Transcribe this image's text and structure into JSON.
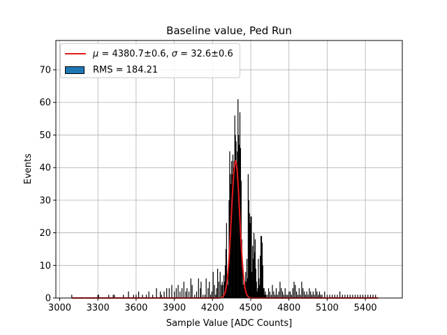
{
  "chart_data": {
    "type": "bar",
    "title": "Baseline value, Ped Run",
    "xlabel": "Sample Value [ADC Counts]",
    "ylabel": "Events",
    "xlim": [
      2970,
      5690
    ],
    "ylim": [
      0,
      79
    ],
    "xticks": [
      3000,
      3300,
      3600,
      3900,
      4200,
      4500,
      4800,
      5100,
      5400
    ],
    "yticks": [
      0,
      10,
      20,
      30,
      40,
      50,
      60,
      70
    ],
    "grid": true,
    "legend_position": "top-left",
    "fit": {
      "name_mu": "μ",
      "mu_value": "4380.7±0.6",
      "name_sigma": "σ",
      "sigma_value": "32.6±0.6",
      "mu": 4380.7,
      "sigma": 32.6,
      "amplitude": 42,
      "x_range": [
        3095,
        5500
      ],
      "color": "#e31a1c"
    },
    "histogram": {
      "label": "RMS = 184.21",
      "legend_color": "#1f77b4",
      "edge_color": "#000000",
      "x": [
        3095,
        3300,
        3305,
        3385,
        3420,
        3430,
        3500,
        3540,
        3580,
        3600,
        3620,
        3650,
        3680,
        3700,
        3730,
        3760,
        3790,
        3800,
        3820,
        3840,
        3860,
        3880,
        3900,
        3915,
        3930,
        3945,
        3960,
        3975,
        3990,
        4000,
        4015,
        4030,
        4040,
        4060,
        4075,
        4090,
        4105,
        4110,
        4125,
        4140,
        4150,
        4165,
        4175,
        4185,
        4195,
        4205,
        4215,
        4225,
        4232,
        4240,
        4250,
        4260,
        4270,
        4276,
        4280,
        4290,
        4295,
        4300,
        4305,
        4310,
        4315,
        4320,
        4325,
        4330,
        4335,
        4340,
        4345,
        4350,
        4355,
        4360,
        4365,
        4370,
        4375,
        4380,
        4385,
        4390,
        4395,
        4400,
        4405,
        4410,
        4415,
        4420,
        4425,
        4430,
        4435,
        4440,
        4445,
        4450,
        4455,
        4460,
        4465,
        4470,
        4475,
        4480,
        4485,
        4490,
        4495,
        4500,
        4505,
        4510,
        4515,
        4520,
        4525,
        4530,
        4535,
        4540,
        4545,
        4550,
        4555,
        4560,
        4565,
        4570,
        4575,
        4580,
        4585,
        4590,
        4595,
        4600,
        4605,
        4610,
        4615,
        4620,
        4630,
        4640,
        4650,
        4660,
        4670,
        4680,
        4690,
        4700,
        4710,
        4720,
        4730,
        4740,
        4750,
        4760,
        4770,
        4780,
        4790,
        4800,
        4810,
        4820,
        4830,
        4840,
        4850,
        4860,
        4870,
        4880,
        4890,
        4900,
        4910,
        4920,
        4930,
        4940,
        4950,
        4960,
        4970,
        4980,
        4990,
        5000,
        5010,
        5020,
        5030,
        5040,
        5050,
        5060,
        5080,
        5100,
        5120,
        5140,
        5160,
        5180,
        5200,
        5220,
        5240,
        5260,
        5280,
        5300,
        5320,
        5340,
        5360,
        5380,
        5400,
        5420,
        5440,
        5460,
        5480
      ],
      "counts": [
        1,
        1,
        1,
        1,
        1,
        1,
        1,
        2,
        1,
        1,
        2,
        1,
        1,
        2,
        1,
        3,
        2,
        1,
        2,
        3,
        3,
        4,
        2,
        3,
        4,
        2,
        3,
        5,
        2,
        3,
        2,
        6,
        4,
        1,
        2,
        6,
        3,
        5,
        1,
        1,
        6,
        3,
        5,
        1,
        2,
        8,
        4,
        1,
        3,
        9,
        5,
        8,
        4,
        5,
        4,
        7,
        5,
        10,
        15,
        23,
        6,
        4,
        11,
        30,
        45,
        38,
        35,
        42,
        38,
        44,
        40,
        42,
        56,
        50,
        48,
        41,
        45,
        61,
        50,
        47,
        57,
        46,
        36,
        18,
        10,
        4,
        6,
        3,
        4,
        8,
        5,
        12,
        6,
        38,
        30,
        26,
        23,
        25,
        25,
        8,
        16,
        12,
        20,
        14,
        18,
        9,
        5,
        2,
        3,
        12,
        6,
        4,
        13,
        19,
        19,
        17,
        10,
        3,
        3,
        1,
        2,
        1,
        1,
        3,
        2,
        1,
        4,
        2,
        1,
        3,
        1,
        2,
        5,
        3,
        2,
        1,
        3,
        1,
        1,
        2,
        2,
        1,
        3,
        5,
        4,
        2,
        1,
        3,
        1,
        5,
        3,
        2,
        1,
        2,
        1,
        3,
        2,
        1,
        2,
        1,
        3,
        2,
        1,
        2,
        1,
        1,
        2,
        1,
        1,
        1,
        1,
        1,
        2,
        1,
        1,
        1,
        1,
        1,
        1,
        1,
        1,
        1,
        1,
        1,
        1,
        1,
        1
      ]
    }
  }
}
